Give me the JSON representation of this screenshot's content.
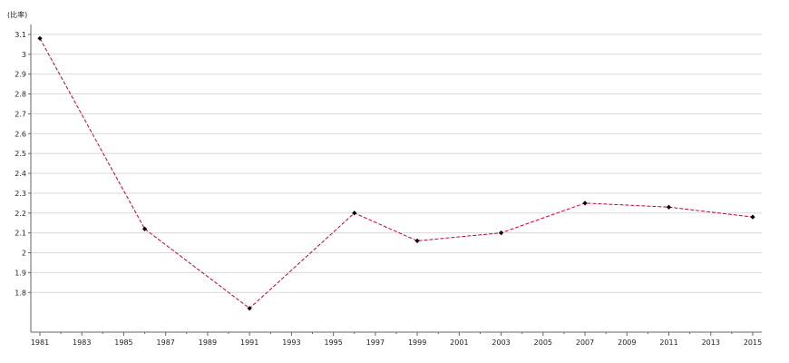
{
  "chart_data": {
    "type": "line",
    "unit_label": "(比率)",
    "x": [
      1981,
      1986,
      1991,
      1996,
      1999,
      2003,
      2007,
      2011,
      2015
    ],
    "series": [
      {
        "values": [
          3.08,
          2.12,
          1.72,
          2.2,
          2.06,
          2.1,
          2.25,
          2.23,
          2.18
        ]
      }
    ],
    "xlim": [
      1981,
      2015
    ],
    "ylim": [
      1.6,
      3.15
    ],
    "x_ticks": [
      "1981",
      "1983",
      "1985",
      "1987",
      "1989",
      "1991",
      "1993",
      "1995",
      "1997",
      "1999",
      "2001",
      "2003",
      "2005",
      "2007",
      "2009",
      "2011",
      "2013",
      "2015"
    ],
    "y_ticks": [
      "1.8",
      "1.9",
      "2",
      "2.1",
      "2.2",
      "2.3",
      "2.4",
      "2.5",
      "2.6",
      "2.7",
      "2.8",
      "2.9",
      "3",
      "3.1"
    ],
    "grid": true,
    "legend": "none",
    "colors": {
      "line": "#cc0033",
      "marker": "#000000",
      "grid": "#d9d9d9",
      "axis": "#666666"
    }
  }
}
